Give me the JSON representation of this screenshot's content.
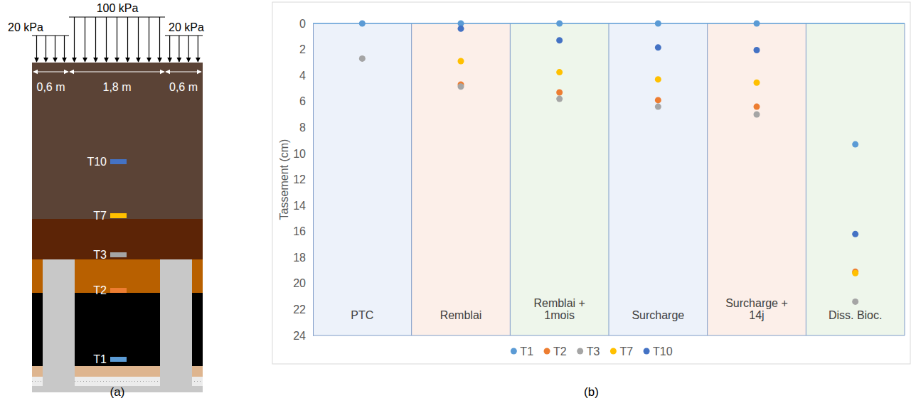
{
  "panels": [
    "(a)",
    "(b)"
  ],
  "diagram": {
    "loads": [
      "20 kPa",
      "100 kPa",
      "20 kPa"
    ],
    "widths": [
      "0,6 m",
      "1,8 m",
      "0,6 m"
    ],
    "sensors": [
      "T10",
      "T7",
      "T3",
      "T2",
      "T1"
    ]
  },
  "chart_data": {
    "type": "scatter",
    "y_label": "Tassement (cm)",
    "categories": [
      "PTC",
      "Remblai",
      "Remblai + 1mois",
      "Surcharge",
      "Surcharge + 14j",
      "Diss. Bioc."
    ],
    "series": [
      {
        "name": "T1",
        "color": "#5b9bd5",
        "marker": "circle",
        "values": [
          0,
          0,
          0,
          0,
          0,
          9.3
        ]
      },
      {
        "name": "T2",
        "color": "#ed7d31",
        "marker": "circle",
        "values": [
          null,
          4.7,
          5.3,
          5.9,
          6.4,
          19.1
        ]
      },
      {
        "name": "T3",
        "color": "#a5a5a5",
        "marker": "circle",
        "values": [
          2.7,
          4.85,
          5.8,
          6.4,
          7.0,
          21.4
        ]
      },
      {
        "name": "T7",
        "color": "#ffc000",
        "marker": "circle",
        "values": [
          null,
          2.9,
          3.75,
          4.3,
          4.55,
          19.2
        ]
      },
      {
        "name": "T10",
        "color": "#4472c4",
        "marker": "circle",
        "values": [
          null,
          0.4,
          1.3,
          1.85,
          2.05,
          16.2
        ]
      }
    ],
    "ylim": [
      0,
      24
    ],
    "yticks": [
      0,
      2,
      4,
      6,
      8,
      10,
      12,
      14,
      16,
      18,
      20,
      22,
      24
    ],
    "grid": false,
    "legend": "bottom"
  }
}
